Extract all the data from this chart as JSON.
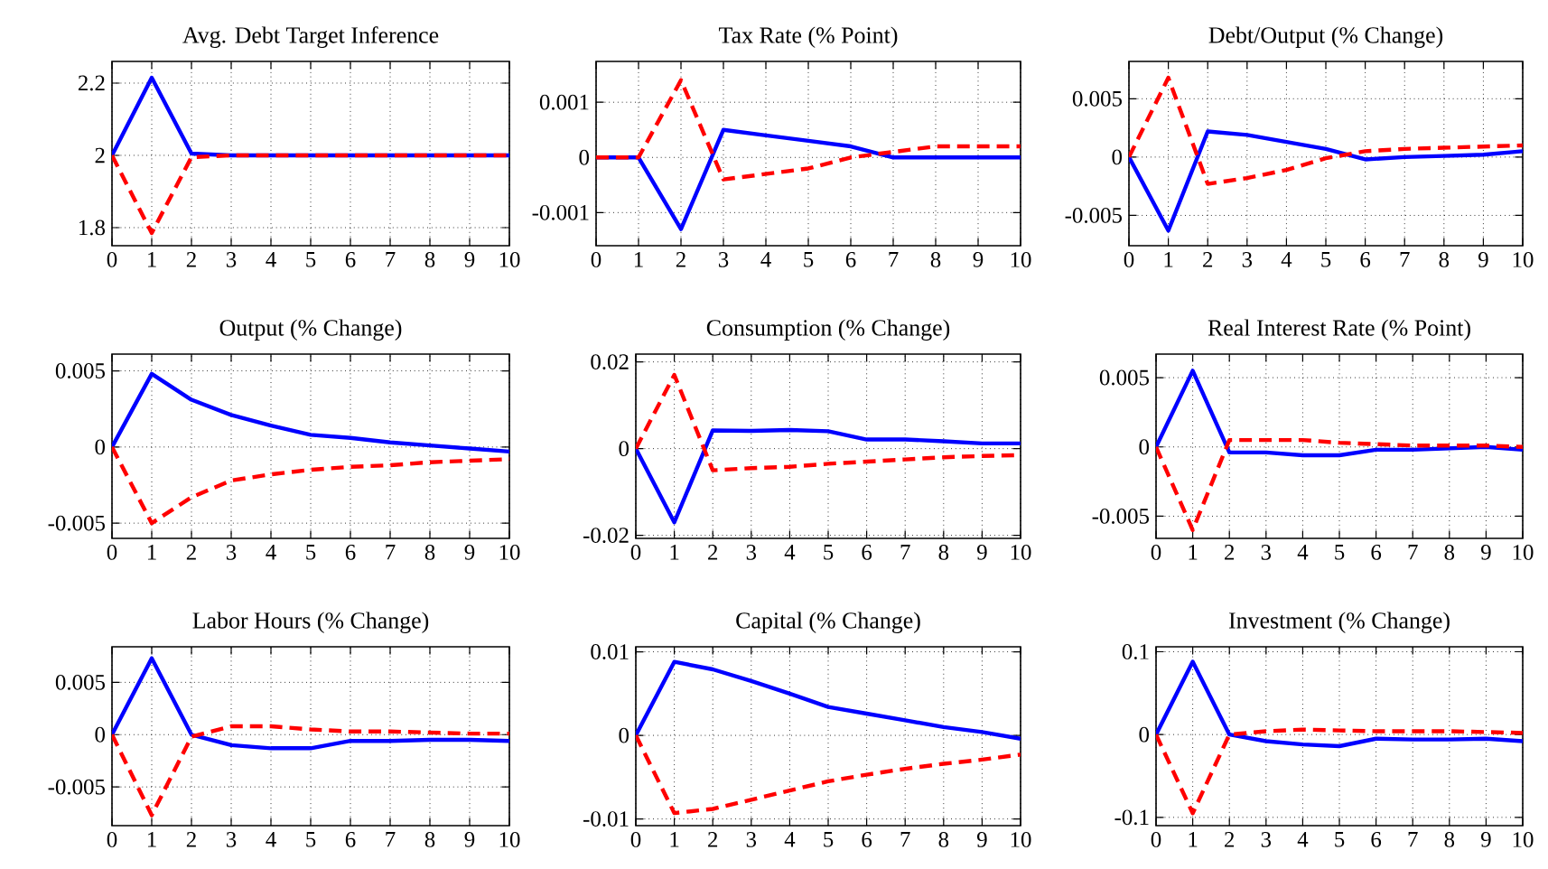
{
  "chart_data": [
    {
      "type": "line",
      "title": "Avg. Debt Target Inference",
      "x": [
        0,
        1,
        2,
        3,
        4,
        5,
        6,
        7,
        8,
        9,
        10
      ],
      "xlim": [
        0,
        10
      ],
      "xticks": [
        0,
        1,
        2,
        3,
        4,
        5,
        6,
        7,
        8,
        9,
        10
      ],
      "ylim": [
        1.75,
        2.26
      ],
      "yticks": [
        1.8,
        2,
        2.2
      ],
      "grid": true,
      "series": [
        {
          "color": "#0000ff",
          "line_style": "solid",
          "values": [
            2,
            2.215,
            2.005,
            2,
            2,
            2,
            2,
            2,
            2,
            2,
            2
          ]
        },
        {
          "color": "#ff0000",
          "line_style": "dashed",
          "values": [
            2,
            1.785,
            1.995,
            2,
            2,
            2,
            2,
            2,
            2,
            2,
            2
          ]
        }
      ]
    },
    {
      "type": "line",
      "title": "Tax Rate (% Point)",
      "x": [
        0,
        1,
        2,
        3,
        4,
        5,
        6,
        7,
        8,
        9,
        10
      ],
      "xlim": [
        0,
        10
      ],
      "xticks": [
        0,
        1,
        2,
        3,
        4,
        5,
        6,
        7,
        8,
        9,
        10
      ],
      "ylim": [
        -0.0016,
        0.00174
      ],
      "yticks": [
        -0.001,
        0,
        0.001
      ],
      "grid": true,
      "series": [
        {
          "color": "#0000ff",
          "line_style": "solid",
          "values": [
            0,
            0,
            -0.0013,
            0.0005,
            0.0004,
            0.0003,
            0.0002,
            0,
            0,
            0,
            0
          ]
        },
        {
          "color": "#ff0000",
          "line_style": "dashed",
          "values": [
            0,
            0,
            0.0014,
            -0.0004,
            -0.0003,
            -0.0002,
            0,
            0.0001,
            0.0002,
            0.0002,
            0.0002
          ]
        }
      ]
    },
    {
      "type": "line",
      "title": "Debt/Output (% Change)",
      "x": [
        0,
        1,
        2,
        3,
        4,
        5,
        6,
        7,
        8,
        9,
        10
      ],
      "xlim": [
        0,
        10
      ],
      "xticks": [
        0,
        1,
        2,
        3,
        4,
        5,
        6,
        7,
        8,
        9,
        10
      ],
      "ylim": [
        -0.0076,
        0.0082
      ],
      "yticks": [
        -0.005,
        0,
        0.005
      ],
      "grid": true,
      "series": [
        {
          "color": "#0000ff",
          "line_style": "solid",
          "values": [
            0,
            -0.0063,
            0.0022,
            0.0019,
            0.0013,
            0.0007,
            -0.0002,
            0,
            0.0001,
            0.0002,
            0.0005
          ]
        },
        {
          "color": "#ff0000",
          "line_style": "dashed",
          "values": [
            0,
            0.0068,
            -0.0023,
            -0.0018,
            -0.0011,
            -0.0001,
            0.0005,
            0.0007,
            0.0008,
            0.0009,
            0.001
          ]
        }
      ]
    },
    {
      "type": "line",
      "title": "Output (% Change)",
      "x": [
        0,
        1,
        2,
        3,
        4,
        5,
        6,
        7,
        8,
        9,
        10
      ],
      "xlim": [
        0,
        10
      ],
      "xticks": [
        0,
        1,
        2,
        3,
        4,
        5,
        6,
        7,
        8,
        9,
        10
      ],
      "ylim": [
        -0.006,
        0.0061
      ],
      "yticks": [
        -0.005,
        0,
        0.005
      ],
      "grid": true,
      "series": [
        {
          "color": "#0000ff",
          "line_style": "solid",
          "values": [
            0,
            0.0048,
            0.0031,
            0.0021,
            0.0014,
            0.0008,
            0.0006,
            0.0003,
            0.0001,
            -0.0001,
            -0.0003
          ]
        },
        {
          "color": "#ff0000",
          "line_style": "dashed",
          "values": [
            0,
            -0.005,
            -0.0033,
            -0.0022,
            -0.0018,
            -0.0015,
            -0.0013,
            -0.0012,
            -0.001,
            -0.0009,
            -0.0008
          ]
        }
      ]
    },
    {
      "type": "line",
      "title": "Consumption (% Change)",
      "x": [
        0,
        1,
        2,
        3,
        4,
        5,
        6,
        7,
        8,
        9,
        10
      ],
      "xlim": [
        0,
        10
      ],
      "xticks": [
        0,
        1,
        2,
        3,
        4,
        5,
        6,
        7,
        8,
        9,
        10
      ],
      "ylim": [
        -0.0207,
        0.0218
      ],
      "yticks": [
        -0.02,
        0,
        0.02
      ],
      "grid": true,
      "series": [
        {
          "color": "#0000ff",
          "line_style": "solid",
          "values": [
            0,
            -0.017,
            0.0042,
            0.0041,
            0.0043,
            0.004,
            0.0021,
            0.0021,
            0.0017,
            0.0012,
            0.0012
          ]
        },
        {
          "color": "#ff0000",
          "line_style": "dashed",
          "values": [
            0,
            0.017,
            -0.005,
            -0.0045,
            -0.0042,
            -0.0035,
            -0.003,
            -0.0025,
            -0.002,
            -0.0017,
            -0.0015
          ]
        }
      ]
    },
    {
      "type": "line",
      "title": "Real Interest Rate (% Point)",
      "x": [
        0,
        1,
        2,
        3,
        4,
        5,
        6,
        7,
        8,
        9,
        10
      ],
      "xlim": [
        0,
        10
      ],
      "xticks": [
        0,
        1,
        2,
        3,
        4,
        5,
        6,
        7,
        8,
        9,
        10
      ],
      "ylim": [
        -0.0066,
        0.0067
      ],
      "yticks": [
        -0.005,
        0,
        0.005
      ],
      "grid": true,
      "series": [
        {
          "color": "#0000ff",
          "line_style": "solid",
          "values": [
            0,
            0.0055,
            -0.0004,
            -0.0004,
            -0.0006,
            -0.0006,
            -0.0002,
            -0.0002,
            -0.0001,
            0,
            -0.0002
          ]
        },
        {
          "color": "#ff0000",
          "line_style": "dashed",
          "values": [
            0,
            -0.006,
            0.0005,
            0.0005,
            0.0005,
            0.0003,
            0.0002,
            0.0001,
            0.0001,
            0.0001,
            0
          ]
        }
      ]
    },
    {
      "type": "line",
      "title": "Labor Hours (% Change)",
      "x": [
        0,
        1,
        2,
        3,
        4,
        5,
        6,
        7,
        8,
        9,
        10
      ],
      "xlim": [
        0,
        10
      ],
      "xticks": [
        0,
        1,
        2,
        3,
        4,
        5,
        6,
        7,
        8,
        9,
        10
      ],
      "ylim": [
        -0.0087,
        0.0084
      ],
      "yticks": [
        -0.005,
        0,
        0.005
      ],
      "grid": true,
      "series": [
        {
          "color": "#0000ff",
          "line_style": "solid",
          "values": [
            0,
            0.0073,
            0,
            -0.001,
            -0.0013,
            -0.0013,
            -0.0006,
            -0.0006,
            -0.0005,
            -0.0005,
            -0.0006
          ]
        },
        {
          "color": "#ff0000",
          "line_style": "dashed",
          "values": [
            0,
            -0.0077,
            -0.0002,
            0.0008,
            0.0008,
            0.0005,
            0.0003,
            0.0003,
            0.0002,
            0.0001,
            0.0001
          ]
        }
      ]
    },
    {
      "type": "line",
      "title": "Capital (% Change)",
      "x": [
        0,
        1,
        2,
        3,
        4,
        5,
        6,
        7,
        8,
        9,
        10
      ],
      "xlim": [
        0,
        10
      ],
      "xticks": [
        0,
        1,
        2,
        3,
        4,
        5,
        6,
        7,
        8,
        9,
        10
      ],
      "ylim": [
        -0.0108,
        0.0106
      ],
      "yticks": [
        -0.01,
        0,
        0.01
      ],
      "grid": true,
      "series": [
        {
          "color": "#0000ff",
          "line_style": "solid",
          "values": [
            0,
            0.0088,
            0.0079,
            0.0065,
            0.005,
            0.0034,
            0.0026,
            0.0018,
            0.001,
            0.0004,
            -0.0004
          ]
        },
        {
          "color": "#ff0000",
          "line_style": "dashed",
          "values": [
            0,
            -0.0093,
            -0.0088,
            -0.0077,
            -0.0066,
            -0.0055,
            -0.0047,
            -0.004,
            -0.0034,
            -0.0029,
            -0.0023
          ]
        }
      ]
    },
    {
      "type": "line",
      "title": "Investment (% Change)",
      "x": [
        0,
        1,
        2,
        3,
        4,
        5,
        6,
        7,
        8,
        9,
        10
      ],
      "xlim": [
        0,
        10
      ],
      "xticks": [
        0,
        1,
        2,
        3,
        4,
        5,
        6,
        7,
        8,
        9,
        10
      ],
      "ylim": [
        -0.11,
        0.106
      ],
      "yticks": [
        -0.1,
        0,
        0.1
      ],
      "grid": true,
      "series": [
        {
          "color": "#0000ff",
          "line_style": "solid",
          "values": [
            0,
            0.088,
            0,
            -0.008,
            -0.012,
            -0.014,
            -0.005,
            -0.006,
            -0.006,
            -0.005,
            -0.008
          ]
        },
        {
          "color": "#ff0000",
          "line_style": "dashed",
          "values": [
            0,
            -0.095,
            0,
            0.004,
            0.006,
            0.005,
            0.004,
            0.004,
            0.004,
            0.003,
            0.002
          ]
        }
      ]
    }
  ]
}
